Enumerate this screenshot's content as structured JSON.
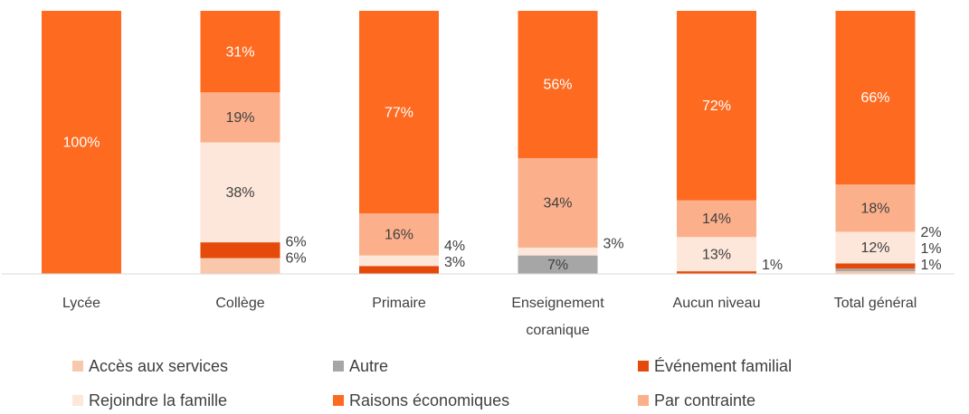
{
  "chart_data": {
    "type": "bar",
    "stacked": true,
    "categories": [
      "Lycée",
      "Collège",
      "Primaire",
      "Enseignement coranique",
      "Aucun niveau",
      "Total général"
    ],
    "ylim": [
      0,
      100
    ],
    "series": [
      {
        "name": "Accès aux services",
        "color": "#f9c7ab",
        "values": [
          null,
          6,
          null,
          null,
          null,
          1
        ],
        "value_labels": [
          null,
          "6%",
          null,
          null,
          null,
          "1%"
        ]
      },
      {
        "name": "Autre",
        "color": "#a6a6a6",
        "values": [
          null,
          null,
          null,
          7,
          null,
          1
        ],
        "value_labels": [
          null,
          null,
          null,
          "7%",
          null,
          "1%"
        ]
      },
      {
        "name": "Événement familial",
        "color": "#e64a0b",
        "values": [
          null,
          6,
          3,
          null,
          1,
          2
        ],
        "value_labels": [
          null,
          "6%",
          "3%",
          null,
          "1%",
          "2%"
        ]
      },
      {
        "name": "Rejoindre la famille",
        "color": "#fde6da",
        "values": [
          null,
          38,
          4,
          3,
          13,
          12
        ],
        "value_labels": [
          null,
          "38%",
          "4%",
          "3%",
          "13%",
          "12%"
        ]
      },
      {
        "name": "Raisons économiques",
        "color": "#fd6a20",
        "values": [
          100,
          31,
          77,
          56,
          72,
          66
        ],
        "value_labels": [
          "100%",
          "31%",
          "77%",
          "56%",
          "72%",
          "66%"
        ]
      },
      {
        "name": "Par contrainte",
        "color": "#fbb08b",
        "values": [
          null,
          19,
          16,
          34,
          14,
          18
        ],
        "value_labels": [
          null,
          "19%",
          "16%",
          "34%",
          "14%",
          "18%"
        ]
      }
    ]
  }
}
